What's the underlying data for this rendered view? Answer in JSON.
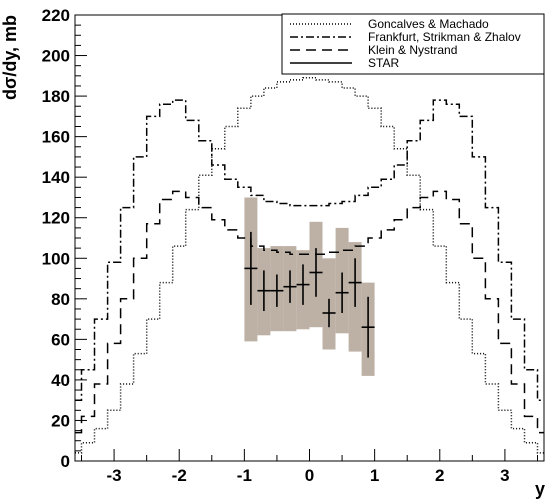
{
  "chart_data": {
    "type": "line",
    "xlabel": "y",
    "ylabel": "dσ/dy, mb",
    "xlim": [
      -3.6,
      3.6
    ],
    "ylim": [
      0,
      220
    ],
    "x_ticks": [
      -3,
      -2,
      -1,
      0,
      1,
      2,
      3
    ],
    "y_ticks": [
      0,
      20,
      40,
      60,
      80,
      100,
      120,
      140,
      160,
      180,
      200,
      220
    ],
    "grid": false,
    "legend": "top-right",
    "colors": {
      "star_band": "#bdb1a5",
      "curves": "#000000",
      "background": "#ffffff"
    },
    "series": [
      {
        "name": "Goncalves & Machado",
        "style": "dotted",
        "x": [
          -3.6,
          -3.4,
          -3.2,
          -3.0,
          -2.8,
          -2.6,
          -2.4,
          -2.2,
          -2.0,
          -1.8,
          -1.6,
          -1.4,
          -1.2,
          -1.0,
          -0.8,
          -0.6,
          -0.4,
          -0.2,
          0.0,
          0.2,
          0.4,
          0.6,
          0.8,
          1.0,
          1.2,
          1.4,
          1.6,
          1.8,
          2.0,
          2.2,
          2.4,
          2.6,
          2.8,
          3.0,
          3.2,
          3.4,
          3.6
        ],
        "y": [
          4,
          9,
          16,
          25,
          38,
          53,
          70,
          88,
          106,
          124,
          141,
          154,
          165,
          174,
          180,
          184,
          187,
          188,
          189,
          188,
          187,
          184,
          180,
          174,
          165,
          154,
          141,
          124,
          106,
          88,
          70,
          53,
          38,
          25,
          16,
          9,
          4
        ]
      },
      {
        "name": "Frankfurt, Strikman & Zhalov",
        "style": "dash-dot",
        "x": [
          -3.6,
          -3.4,
          -3.2,
          -3.0,
          -2.8,
          -2.6,
          -2.4,
          -2.2,
          -2.0,
          -1.8,
          -1.6,
          -1.4,
          -1.2,
          -1.0,
          -0.8,
          -0.6,
          -0.4,
          -0.2,
          0.0,
          0.2,
          0.4,
          0.6,
          0.8,
          1.0,
          1.2,
          1.4,
          1.6,
          1.8,
          2.0,
          2.2,
          2.4,
          2.6,
          2.8,
          3.0,
          3.2,
          3.4,
          3.6
        ],
        "y": [
          30,
          45,
          70,
          98,
          125,
          150,
          170,
          176,
          178,
          168,
          158,
          146,
          139,
          135,
          131,
          128,
          127,
          126,
          126,
          126,
          127,
          128,
          131,
          135,
          139,
          146,
          158,
          168,
          178,
          176,
          170,
          150,
          125,
          98,
          70,
          45,
          30
        ]
      },
      {
        "name": "Klein & Nystrand",
        "style": "dashed",
        "x": [
          -3.6,
          -3.4,
          -3.2,
          -3.0,
          -2.8,
          -2.6,
          -2.4,
          -2.2,
          -2.0,
          -1.8,
          -1.6,
          -1.4,
          -1.2,
          -1.0,
          -0.8,
          -0.6,
          -0.4,
          -0.2,
          0.0,
          0.2,
          0.4,
          0.6,
          0.8,
          1.0,
          1.2,
          1.4,
          1.6,
          1.8,
          2.0,
          2.2,
          2.4,
          2.6,
          2.8,
          3.0,
          3.2,
          3.4,
          3.6
        ],
        "y": [
          14,
          22,
          38,
          58,
          80,
          100,
          117,
          129,
          133,
          130,
          125,
          119,
          114,
          110,
          106,
          104,
          103,
          102,
          102,
          102,
          103,
          104,
          106,
          110,
          114,
          119,
          125,
          130,
          133,
          129,
          117,
          100,
          80,
          58,
          38,
          22,
          14
        ]
      }
    ],
    "star_data": {
      "name": "STAR",
      "x": [
        -0.9,
        -0.7,
        -0.5,
        -0.3,
        -0.1,
        0.1,
        0.3,
        0.5,
        0.7,
        0.9
      ],
      "y": [
        95,
        84,
        84,
        86,
        87,
        93,
        73,
        83,
        88,
        66
      ],
      "stat_err": [
        18,
        10,
        8,
        8,
        10,
        12,
        7,
        10,
        12,
        15
      ],
      "xerr": 0.1,
      "sys_low": [
        59,
        62,
        64,
        64,
        65,
        66,
        55,
        63,
        54,
        42
      ],
      "sys_high": [
        130,
        105,
        106,
        106,
        104,
        118,
        100,
        115,
        108,
        88
      ]
    }
  }
}
